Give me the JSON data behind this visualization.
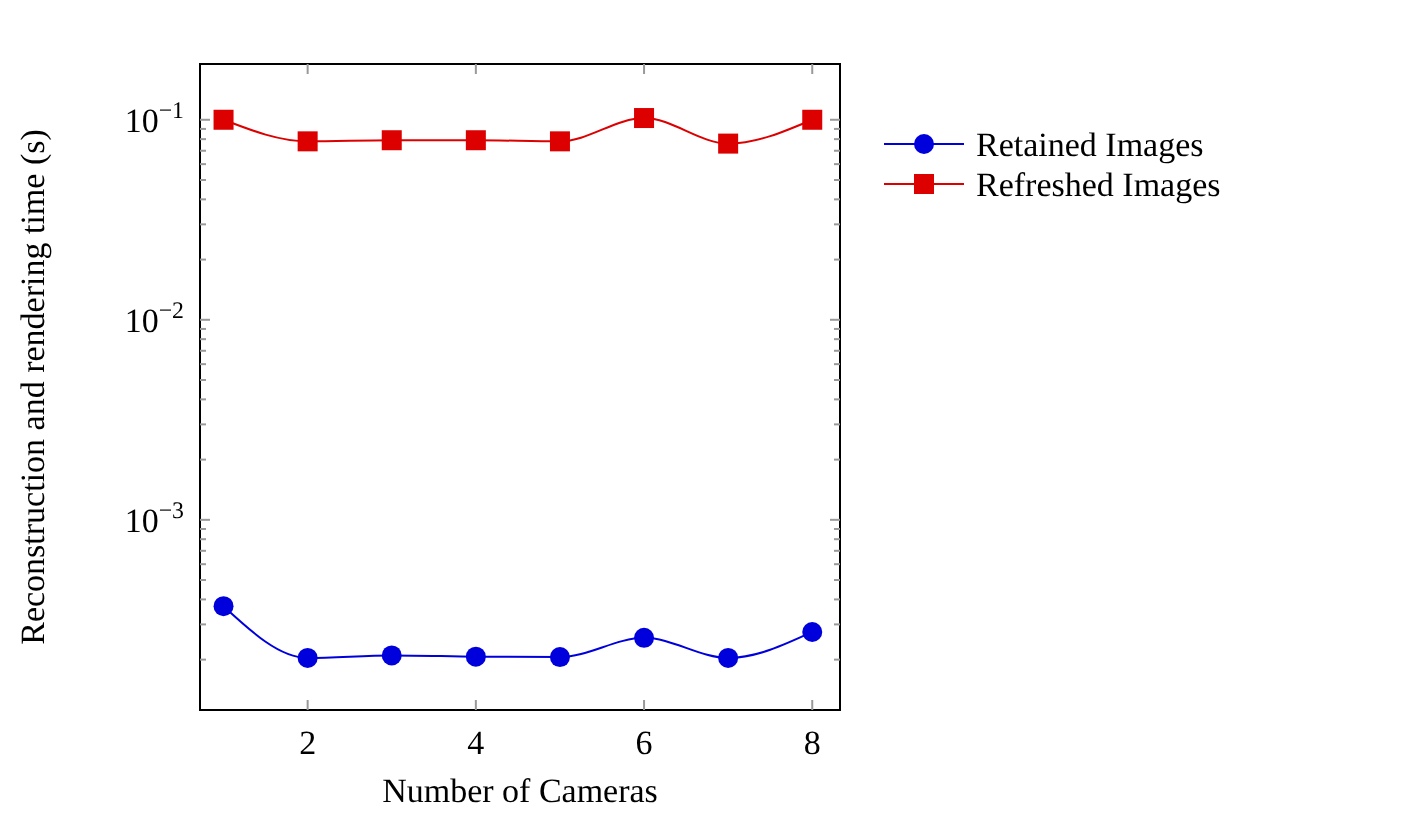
{
  "chart_data": {
    "type": "line",
    "xlabel": "Number of Cameras",
    "ylabel": "Reconstruction and rendering time (s)",
    "x": [
      1,
      2,
      3,
      4,
      5,
      6,
      7,
      8
    ],
    "series": [
      {
        "name": "Retained Images",
        "color": "#0000dd",
        "marker": "circle",
        "values": [
          0.00037,
          0.000204,
          0.00021,
          0.000207,
          0.000206,
          0.000257,
          0.000204,
          0.000275
        ]
      },
      {
        "name": "Refreshed Images",
        "color": "#dd0000",
        "marker": "square",
        "values": [
          0.1,
          0.078,
          0.079,
          0.079,
          0.078,
          0.102,
          0.076,
          0.1
        ]
      }
    ],
    "log": true,
    "xlim": [
      0.72,
      8.33
    ],
    "ylim": [
      0.000112,
      0.19
    ],
    "xticks": [
      2,
      4,
      6,
      8
    ],
    "yticks": [
      {
        "value": 0.0002,
        "label": null
      },
      {
        "value": 0.0003,
        "label": null
      },
      {
        "value": 0.0004,
        "label": null
      },
      {
        "value": 0.0005,
        "label": null
      },
      {
        "value": 0.0006,
        "label": null
      },
      {
        "value": 0.0007,
        "label": null
      },
      {
        "value": 0.0008,
        "label": null
      },
      {
        "value": 0.0009,
        "label": null
      },
      {
        "value": 0.001,
        "label": "10$^{−3}$"
      },
      {
        "value": 0.002,
        "label": null
      },
      {
        "value": 0.003,
        "label": null
      },
      {
        "value": 0.004,
        "label": null
      },
      {
        "value": 0.005,
        "label": null
      },
      {
        "value": 0.006,
        "label": null
      },
      {
        "value": 0.007,
        "label": null
      },
      {
        "value": 0.008,
        "label": null
      },
      {
        "value": 0.009,
        "label": null
      },
      {
        "value": 0.01,
        "label": "10$^{−2}$"
      },
      {
        "value": 0.02,
        "label": null
      },
      {
        "value": 0.03,
        "label": null
      },
      {
        "value": 0.04,
        "label": null
      },
      {
        "value": 0.05,
        "label": null
      },
      {
        "value": 0.06,
        "label": null
      },
      {
        "value": 0.07,
        "label": null
      },
      {
        "value": 0.08,
        "label": null
      },
      {
        "value": 0.09,
        "label": null
      },
      {
        "value": 0.1,
        "label": "10$^{−1}$"
      }
    ],
    "grid": false,
    "legend": "right"
  }
}
